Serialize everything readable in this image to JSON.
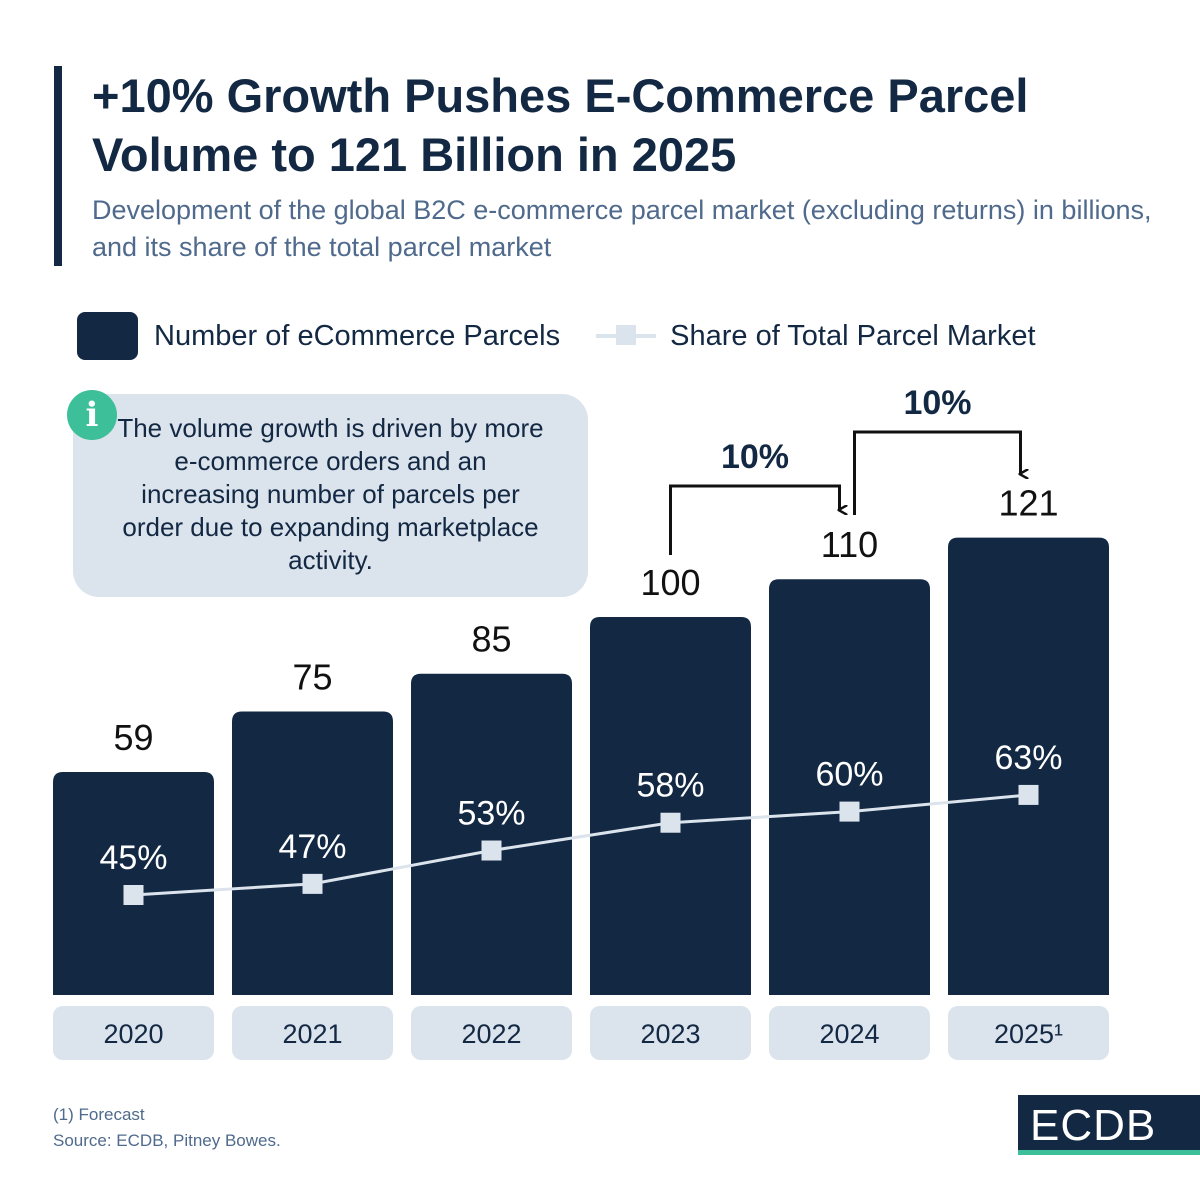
{
  "header": {
    "title": "+10% Growth Pushes E-Commerce Parcel Volume to 121 Billion in 2025",
    "subtitle": "Development of the global B2C e-commerce parcel market (excluding returns) in billions, and its share of the total parcel market"
  },
  "info_box": {
    "icon": "info-icon",
    "text": "The volume growth is driven by more e-commerce orders and an increasing number of parcels per order due to expanding marketplace activity."
  },
  "chart_data": {
    "type": "bar",
    "title": "+10% Growth Pushes E-Commerce Parcel Volume to 121 Billion in 2025",
    "categories": [
      "2020",
      "2021",
      "2022",
      "2023",
      "2024",
      "2025¹"
    ],
    "series": [
      {
        "name": "Number of eCommerce Parcels",
        "type": "bar",
        "values": [
          59,
          75,
          85,
          100,
          110,
          121
        ],
        "labels": [
          "59",
          "75",
          "85",
          "100",
          "110",
          "121"
        ],
        "color": "#132843"
      },
      {
        "name": "Share of Total Parcel Market",
        "type": "line",
        "values": [
          45,
          47,
          53,
          58,
          60,
          63
        ],
        "labels": [
          "45%",
          "47%",
          "53%",
          "58%",
          "60%",
          "63%"
        ],
        "color": "#dbe3ec"
      }
    ],
    "annotations": [
      {
        "from": "2023",
        "to": "2024",
        "text": "10%"
      },
      {
        "from": "2024",
        "to": "2025¹",
        "text": "10%"
      }
    ],
    "legend_position": "top",
    "grid": false
  },
  "footer": {
    "note": "(1) Forecast",
    "source": "Source: ECDB, Pitney Bowes.",
    "logo": "ECDB"
  },
  "colors": {
    "navy": "#132843",
    "light": "#dbe3ec",
    "green": "#3dbf99"
  }
}
